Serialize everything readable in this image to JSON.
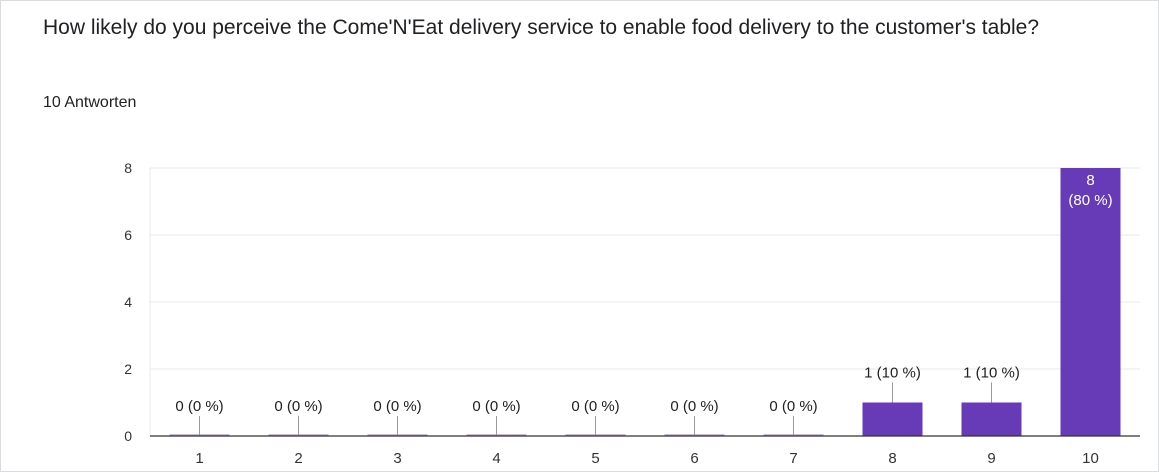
{
  "question": {
    "title": "How likely do you perceive the Come'N'Eat delivery service to enable food delivery to the customer's table?",
    "response_count": "10 Antworten"
  },
  "colors": {
    "bar": "#673ab7",
    "grid": "#e8e8e8",
    "axis": "#333333",
    "text": "#202124",
    "bar_label_inside": "#ffffff"
  },
  "chart_data": {
    "type": "bar",
    "categories": [
      "1",
      "2",
      "3",
      "4",
      "5",
      "6",
      "7",
      "8",
      "9",
      "10"
    ],
    "values": [
      0,
      0,
      0,
      0,
      0,
      0,
      0,
      1,
      1,
      8
    ],
    "data_labels": [
      "0 (0 %)",
      "0 (0 %)",
      "0 (0 %)",
      "0 (0 %)",
      "0 (0 %)",
      "0 (0 %)",
      "0 (0 %)",
      "1 (10 %)",
      "1 (10 %)",
      "8\n(80 %)"
    ],
    "y_ticks": [
      0,
      2,
      4,
      6,
      8
    ],
    "ylim": [
      0,
      8
    ],
    "grid": true,
    "title": "",
    "xlabel": "",
    "ylabel": ""
  }
}
